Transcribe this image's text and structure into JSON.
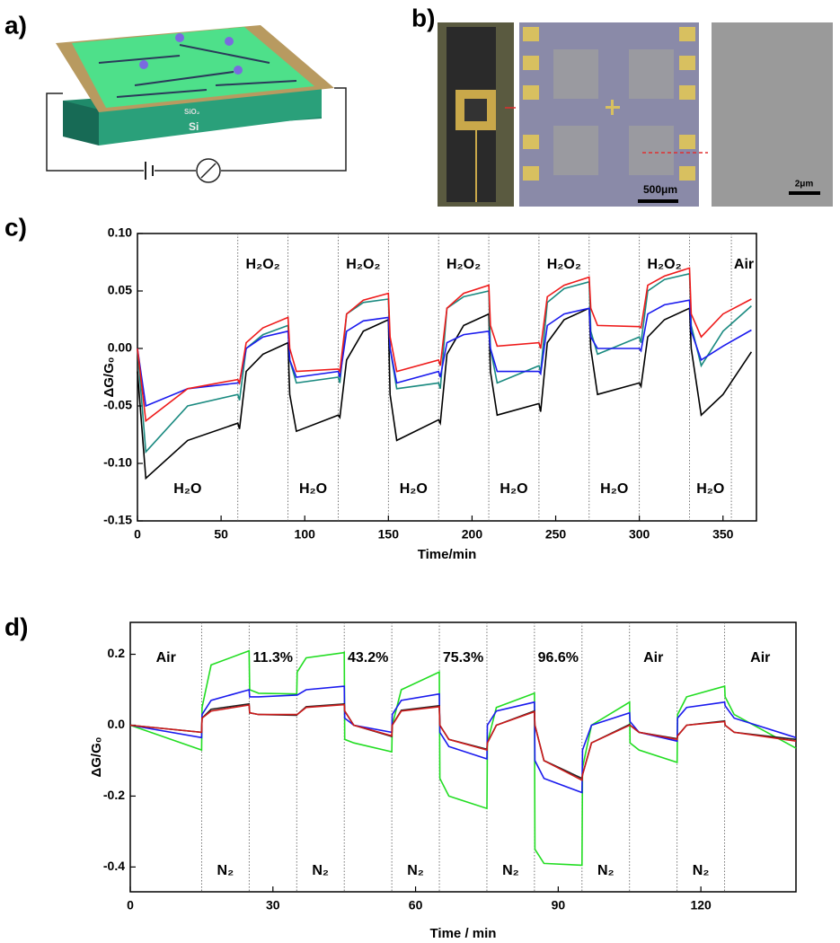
{
  "figure": {
    "panel_labels": [
      "a)",
      "b)",
      "c)",
      "d)"
    ],
    "panel_a": {
      "layer_labels": [
        "SiO₂",
        "Si"
      ]
    },
    "panel_b": {
      "scale_bars": [
        "500μm",
        "2μm"
      ]
    }
  },
  "chart_data": [
    {
      "type": "line",
      "x_label": "Time/min",
      "y_label": "ΔG/G₀",
      "xlim": [
        0,
        370
      ],
      "ylim": [
        -0.15,
        0.1
      ],
      "xticks": [
        0,
        50,
        100,
        150,
        200,
        250,
        300,
        350
      ],
      "yticks": [
        -0.15,
        {
          "value": -0.1,
          "label": "-0.10"
        },
        -0.05,
        {
          "value": 0,
          "label": "0.00"
        },
        0.05,
        {
          "value": 0.1,
          "label": "0.10"
        }
      ],
      "markers": [
        60,
        90,
        120,
        150,
        180,
        210,
        240,
        270,
        300,
        330,
        355
      ],
      "annotations": {
        "top": [
          "H₂O₂",
          "H₂O₂",
          "H₂O₂",
          "H₂O₂",
          "H₂O₂",
          "Air"
        ],
        "bottom": [
          "H₂O",
          "H₂O",
          "H₂O",
          "H₂O",
          "H₂O",
          "H₂O"
        ]
      },
      "x": [
        0,
        5,
        30,
        60,
        61,
        65,
        75,
        90,
        91,
        95,
        120,
        121,
        125,
        135,
        150,
        151,
        155,
        180,
        181,
        185,
        195,
        210,
        211,
        215,
        240,
        241,
        245,
        255,
        270,
        271,
        275,
        300,
        301,
        305,
        315,
        330,
        331,
        337,
        350,
        367
      ],
      "series": [
        {
          "color": "#000000",
          "values": [
            -0.02,
            -0.113,
            -0.08,
            -0.065,
            -0.07,
            -0.02,
            -0.005,
            0.005,
            -0.04,
            -0.072,
            -0.058,
            -0.06,
            -0.01,
            0.015,
            0.025,
            -0.04,
            -0.08,
            -0.062,
            -0.065,
            -0.005,
            0.02,
            0.03,
            -0.02,
            -0.058,
            -0.048,
            -0.055,
            0.005,
            0.025,
            0.035,
            0.0,
            -0.04,
            -0.03,
            -0.033,
            0.01,
            0.025,
            0.035,
            0.0,
            -0.058,
            -0.04,
            -0.003
          ]
        },
        {
          "color": "#1a8a80",
          "values": [
            0,
            -0.09,
            -0.05,
            -0.04,
            -0.045,
            0.0,
            0.012,
            0.02,
            -0.01,
            -0.03,
            -0.025,
            -0.03,
            0.03,
            0.04,
            0.043,
            0.0,
            -0.035,
            -0.03,
            -0.035,
            0.035,
            0.045,
            0.05,
            0.0,
            -0.03,
            -0.015,
            -0.02,
            0.04,
            0.052,
            0.058,
            0.015,
            -0.005,
            0.01,
            0.005,
            0.05,
            0.06,
            0.065,
            0.02,
            -0.015,
            0.015,
            0.037
          ]
        },
        {
          "color": "#1a1aee",
          "values": [
            0,
            -0.05,
            -0.035,
            -0.03,
            -0.03,
            0.0,
            0.01,
            0.015,
            -0.01,
            -0.025,
            -0.02,
            -0.025,
            0.015,
            0.024,
            0.027,
            0.0,
            -0.03,
            -0.02,
            -0.025,
            0.005,
            0.012,
            0.015,
            0.0,
            -0.02,
            -0.02,
            -0.022,
            0.02,
            0.03,
            0.035,
            0.01,
            0.0,
            0.0,
            -0.002,
            0.03,
            0.038,
            0.042,
            0.015,
            -0.01,
            0.002,
            0.016
          ]
        },
        {
          "color": "#ee1a1a",
          "values": [
            0,
            -0.063,
            -0.035,
            -0.027,
            -0.03,
            0.005,
            0.018,
            0.027,
            0.0,
            -0.02,
            -0.018,
            -0.02,
            0.03,
            0.042,
            0.048,
            0.01,
            -0.02,
            -0.01,
            -0.015,
            0.035,
            0.048,
            0.055,
            0.02,
            0.002,
            0.005,
            0.0,
            0.045,
            0.055,
            0.062,
            0.035,
            0.02,
            0.019,
            0.018,
            0.055,
            0.063,
            0.07,
            0.03,
            0.01,
            0.03,
            0.043
          ]
        }
      ]
    },
    {
      "type": "line",
      "x_label": "Time / min",
      "y_label": "ΔG/G₀",
      "xlim": [
        0,
        140
      ],
      "ylim": [
        -0.47,
        0.29
      ],
      "xticks": [
        0,
        30,
        60,
        90,
        120
      ],
      "yticks": [
        -0.4,
        -0.2,
        {
          "value": 0,
          "label": "0.0"
        },
        0.2
      ],
      "markers": [
        15,
        25,
        35,
        45,
        55,
        65,
        75,
        85,
        95,
        105,
        115,
        125
      ],
      "annotations": {
        "top": [
          "Air",
          "11.3%",
          "43.2%",
          "75.3%",
          "96.6%",
          "Air",
          "Air"
        ],
        "bottom": [
          "N₂",
          "N₂",
          "N₂",
          "N₂",
          "N₂",
          "N₂"
        ]
      },
      "x": [
        0,
        15,
        15.1,
        17,
        25,
        25.1,
        27,
        35,
        35.1,
        37,
        45,
        45.1,
        47,
        55,
        55.1,
        57,
        65,
        65.1,
        67,
        75,
        75.1,
        77,
        85,
        85.1,
        87,
        95,
        95.1,
        97,
        105,
        105.1,
        107,
        115,
        115.1,
        117,
        125,
        125.1,
        127,
        140
      ],
      "series": [
        {
          "color": "#22dd22",
          "values": [
            0,
            -0.07,
            0.05,
            0.17,
            0.21,
            0.1,
            0.09,
            0.088,
            0.15,
            0.19,
            0.205,
            -0.04,
            -0.05,
            -0.075,
            0.0,
            0.1,
            0.15,
            -0.15,
            -0.2,
            -0.235,
            -0.05,
            0.05,
            0.09,
            -0.35,
            -0.39,
            -0.395,
            -0.12,
            0.0,
            0.065,
            -0.05,
            -0.07,
            -0.105,
            0.03,
            0.08,
            0.11,
            0.08,
            0.03,
            -0.065
          ]
        },
        {
          "color": "#1a1aee",
          "values": [
            0,
            -0.035,
            0.03,
            0.07,
            0.1,
            0.08,
            0.08,
            0.085,
            0.085,
            0.1,
            0.11,
            0.02,
            0.0,
            -0.02,
            0.03,
            0.07,
            0.088,
            -0.02,
            -0.06,
            -0.095,
            0.0,
            0.04,
            0.065,
            -0.1,
            -0.15,
            -0.19,
            -0.07,
            0.0,
            0.035,
            0.01,
            -0.02,
            -0.045,
            0.02,
            0.05,
            0.065,
            0.055,
            0.02,
            -0.035
          ]
        },
        {
          "color": "#222222",
          "values": [
            0,
            -0.02,
            0.02,
            0.045,
            0.06,
            0.035,
            0.03,
            0.028,
            0.03,
            0.052,
            0.06,
            0.04,
            0.0,
            -0.032,
            0.0,
            0.042,
            0.055,
            0.0,
            -0.04,
            -0.068,
            -0.05,
            0.0,
            0.04,
            0.0,
            -0.1,
            -0.15,
            -0.14,
            -0.05,
            0.002,
            0.0,
            -0.02,
            -0.038,
            -0.03,
            0.0,
            0.012,
            0.0,
            -0.02,
            -0.04
          ]
        },
        {
          "color": "#cc1a1a",
          "values": [
            0,
            -0.02,
            0.02,
            0.04,
            0.057,
            0.035,
            0.03,
            0.03,
            0.03,
            0.05,
            0.058,
            0.04,
            0.0,
            -0.03,
            0.0,
            0.04,
            0.052,
            0.0,
            -0.04,
            -0.07,
            -0.05,
            0.0,
            0.038,
            0.0,
            -0.1,
            -0.155,
            -0.14,
            -0.05,
            0.0,
            0.0,
            -0.02,
            -0.04,
            -0.03,
            0.0,
            0.01,
            0.0,
            -0.02,
            -0.045
          ]
        }
      ]
    }
  ]
}
